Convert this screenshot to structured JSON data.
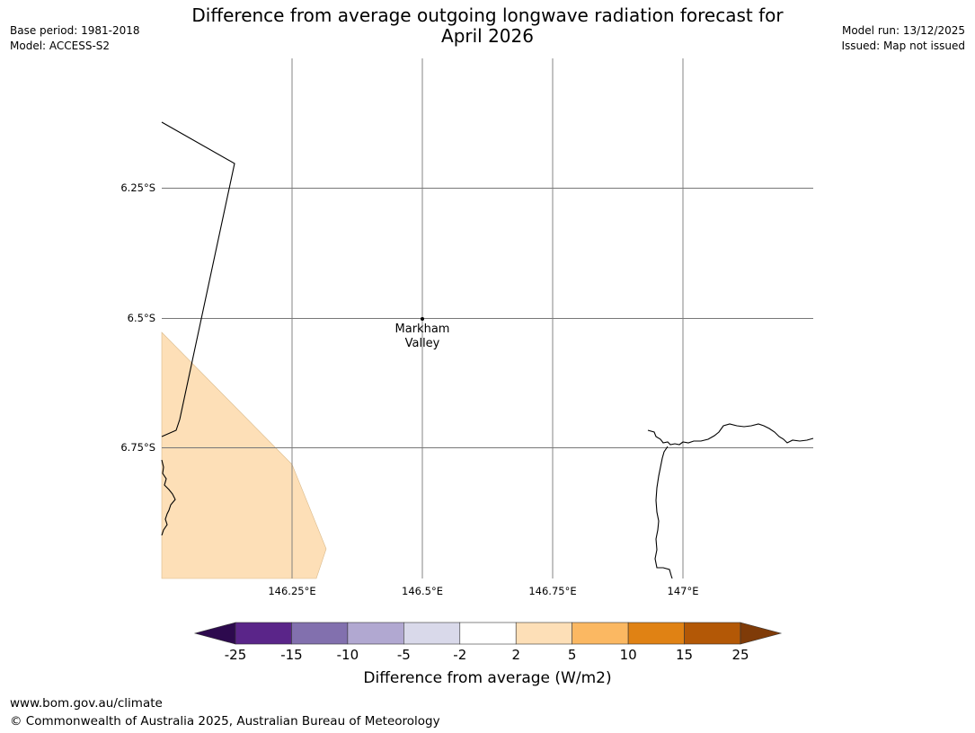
{
  "header": {
    "title_line1": "Difference from average outgoing longwave radiation forecast for",
    "title_line2": "April 2026",
    "base_period": "Base period: 1981-2018",
    "model": "Model: ACCESS-S2",
    "model_run": "Model run: 13/12/2025",
    "issued": "Issued: Map not issued"
  },
  "map": {
    "lat_ticks": [
      "6.25°S",
      "6.5°S",
      "6.75°S"
    ],
    "lon_ticks": [
      "146.25°E",
      "146.5°E",
      "146.75°E",
      "147°E"
    ],
    "place": {
      "name_line1": "Markham",
      "name_line2": "Valley"
    },
    "anomaly_fill_color": "#fddfb7"
  },
  "colorbar": {
    "labels": [
      "-25",
      "-15",
      "-10",
      "-5",
      "-2",
      "2",
      "5",
      "10",
      "15",
      "25"
    ],
    "colors": [
      "#2d0a4e",
      "#5a2589",
      "#8270ae",
      "#b1a8d1",
      "#d9d9ea",
      "#ffffff",
      "#fddfb7",
      "#fbb862",
      "#e08214",
      "#b35806",
      "#7f3b08"
    ],
    "title": "Difference from average (W/m2)"
  },
  "footer": {
    "url": "www.bom.gov.au/climate",
    "copyright": "© Commonwealth of Australia 2025, Australian Bureau of Meteorology"
  }
}
